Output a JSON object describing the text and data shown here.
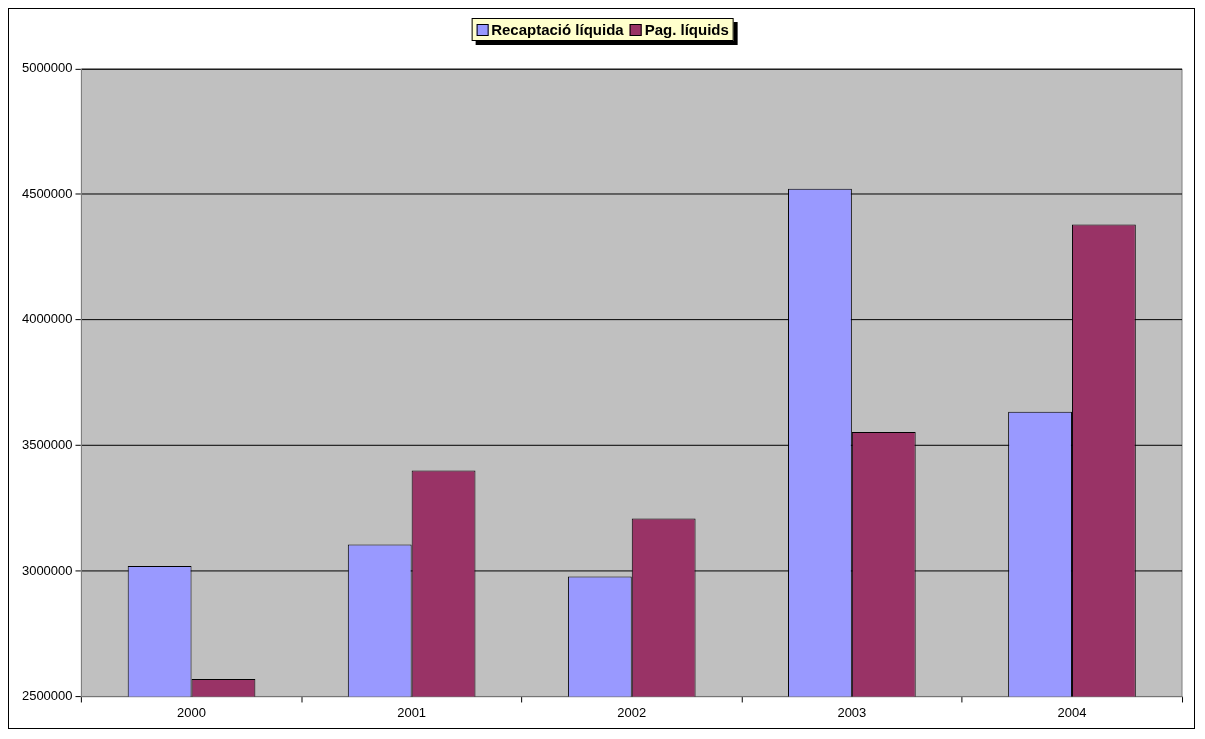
{
  "chart_data": {
    "type": "bar",
    "categories": [
      "2000",
      "2001",
      "2002",
      "2003",
      "2004"
    ],
    "series": [
      {
        "name": "Recaptació líquida",
        "color": "#9999ff",
        "values": [
          3020000,
          3105000,
          2978000,
          4522000,
          3634000
        ]
      },
      {
        "name": "Pag. líquids",
        "color": "#993366",
        "values": [
          2570000,
          3400000,
          3209000,
          3553000,
          4380000
        ]
      }
    ],
    "ylim": [
      2500000,
      5000000
    ],
    "yticks": [
      2500000,
      3000000,
      3500000,
      4000000,
      4500000,
      5000000
    ],
    "grid": "y",
    "legend": "top"
  }
}
